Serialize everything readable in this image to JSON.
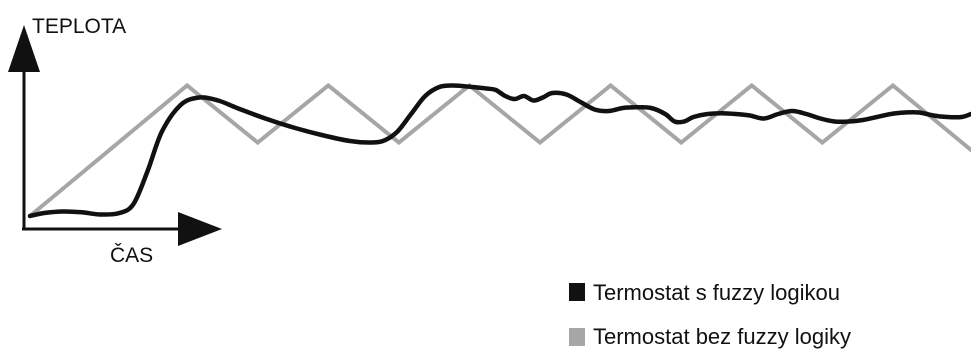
{
  "chart_data": {
    "type": "line",
    "title": "",
    "ylabel": "TEPLOTA",
    "xlabel": "ČAS",
    "xlim": [
      0,
      100
    ],
    "ylim": [
      0,
      100
    ],
    "grid": false,
    "legend_position": "bottom-right",
    "series": [
      {
        "name": "Termostat s fuzzy logikou",
        "color": "#111111",
        "points": [
          [
            0,
            0
          ],
          [
            1.5,
            2
          ],
          [
            3.5,
            3
          ],
          [
            5.5,
            2.5
          ],
          [
            7.5,
            1
          ],
          [
            9.5,
            2
          ],
          [
            11,
            8
          ],
          [
            12.5,
            30
          ],
          [
            14,
            56
          ],
          [
            16,
            74
          ],
          [
            18,
            79
          ],
          [
            20,
            77
          ],
          [
            22,
            72
          ],
          [
            25,
            65
          ],
          [
            28,
            59
          ],
          [
            31,
            54
          ],
          [
            34,
            50
          ],
          [
            36,
            49
          ],
          [
            37.5,
            50
          ],
          [
            39,
            56
          ],
          [
            40.5,
            68
          ],
          [
            42,
            80
          ],
          [
            43.5,
            86
          ],
          [
            45,
            87
          ],
          [
            47,
            86
          ],
          [
            48.5,
            85
          ],
          [
            49.5,
            84
          ],
          [
            50.5,
            80
          ],
          [
            51.5,
            78
          ],
          [
            52.5,
            80
          ],
          [
            53.5,
            77
          ],
          [
            54.5,
            79
          ],
          [
            55.5,
            82
          ],
          [
            57,
            81
          ],
          [
            58.5,
            76
          ],
          [
            60,
            71
          ],
          [
            61.5,
            70
          ],
          [
            63,
            72
          ],
          [
            64.5,
            72.5
          ],
          [
            66,
            72
          ],
          [
            67.5,
            68
          ],
          [
            68.5,
            63
          ],
          [
            69.5,
            63
          ],
          [
            70.5,
            66
          ],
          [
            72,
            68
          ],
          [
            73.5,
            68.5
          ],
          [
            75,
            68
          ],
          [
            76.5,
            67
          ],
          [
            78,
            65
          ],
          [
            79.5,
            68
          ],
          [
            81,
            70
          ],
          [
            82.5,
            68
          ],
          [
            84,
            65
          ],
          [
            85.5,
            63
          ],
          [
            87,
            63
          ],
          [
            88.5,
            64
          ],
          [
            90,
            66
          ],
          [
            91.5,
            68
          ],
          [
            93,
            69
          ],
          [
            94.5,
            69
          ],
          [
            96,
            67
          ],
          [
            97.5,
            66
          ],
          [
            99,
            66
          ],
          [
            100,
            68
          ]
        ]
      },
      {
        "name": "Termostat bez fuzzy logiky",
        "color": "#a6a6a6",
        "points": [
          [
            0,
            0
          ],
          [
            16.7,
            87
          ],
          [
            24.2,
            49
          ],
          [
            31.7,
            87
          ],
          [
            39.2,
            49
          ],
          [
            46.7,
            87
          ],
          [
            54.2,
            49
          ],
          [
            61.7,
            87
          ],
          [
            69.2,
            49
          ],
          [
            76.7,
            87
          ],
          [
            84.2,
            49
          ],
          [
            91.7,
            87
          ],
          [
            100,
            44
          ]
        ]
      }
    ]
  }
}
